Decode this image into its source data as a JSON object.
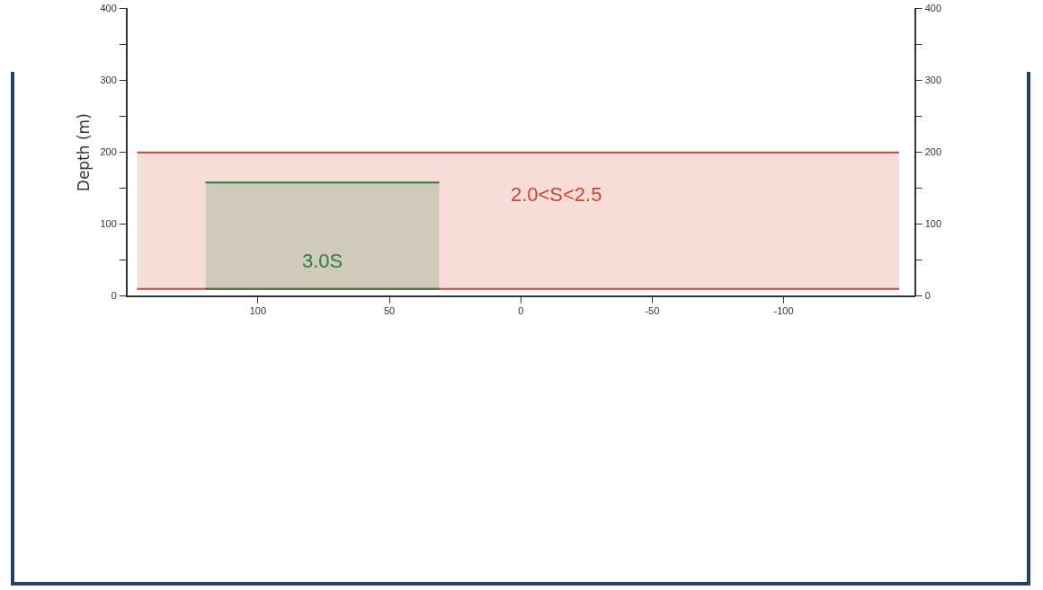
{
  "chart_data": {
    "type": "area",
    "ylabel": "Depth (m)",
    "xlim": [
      150,
      -150
    ],
    "xticks": [
      100,
      50,
      0,
      -50,
      -100
    ],
    "ylim": [
      0,
      400
    ],
    "yticks": [
      0,
      {
        "value": 50,
        "label": null
      },
      100,
      {
        "value": 150,
        "label": null
      },
      200,
      {
        "value": 250,
        "label": null
      },
      300,
      {
        "value": 350,
        "label": null
      },
      400
    ],
    "y2lim": [
      0,
      400
    ],
    "y2ticks": [
      0,
      {
        "value": 50,
        "label": null
      },
      100,
      {
        "value": 150,
        "label": null
      },
      200,
      {
        "value": 250,
        "label": null
      },
      300,
      {
        "value": 350,
        "label": null
      },
      400
    ],
    "grid": false,
    "legend": false,
    "series": [
      {
        "type": "line",
        "color": "#c9472f",
        "x": [
          146,
          -144
        ],
        "values": [
          10,
          10
        ]
      },
      {
        "color": "#c9472f",
        "x": [
          146,
          -144
        ],
        "values": [
          200,
          200
        ]
      },
      {
        "type": "line",
        "color": "#2e7d3a",
        "x": [
          120,
          31
        ],
        "values": [
          10,
          10
        ]
      },
      {
        "color": "#2e7d3a",
        "x": [
          120,
          31
        ],
        "values": [
          158,
          158
        ]
      }
    ],
    "annotations": [
      "2.0<S<2.5",
      "3.0S"
    ]
  }
}
